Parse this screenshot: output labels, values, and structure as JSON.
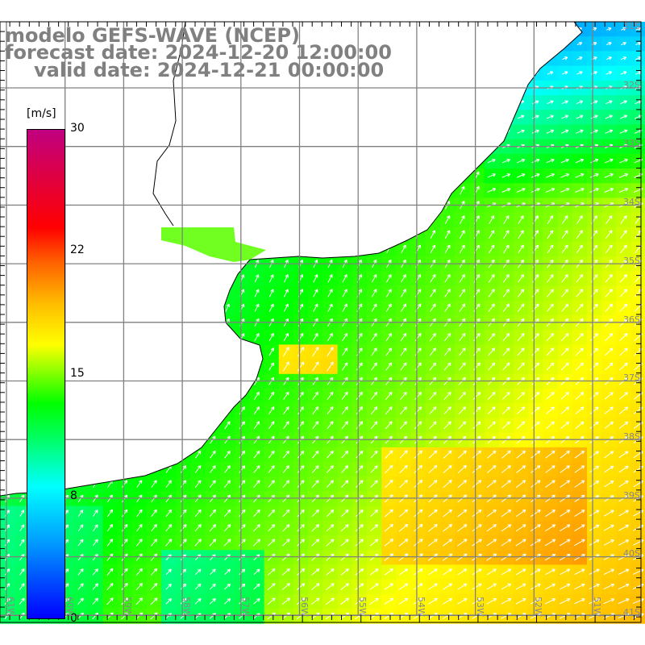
{
  "header": {
    "model": "modelo GEFS-WAVE (NCEP)",
    "forecast": "forecast date: 2024-12-20 12:00:00",
    "valid": "valid date: 2024-12-21 00:00:00"
  },
  "colorbar": {
    "unit": "[m/s]",
    "ticks": [
      "30",
      "22",
      "15",
      "8",
      "0"
    ]
  },
  "axes": {
    "latitudes": [
      "31S",
      "32S",
      "33S",
      "34S",
      "35S",
      "36S",
      "37S",
      "38S",
      "39S",
      "40S",
      "41S"
    ],
    "longitudes": [
      "61W",
      "60W",
      "59W",
      "58W",
      "57W",
      "56W",
      "55W",
      "54W",
      "53W",
      "52W",
      "51W"
    ]
  },
  "colors": {
    "grid": "#808080",
    "land": "#ffffff",
    "coast": "#000000",
    "arrow": "#ffffff"
  }
}
